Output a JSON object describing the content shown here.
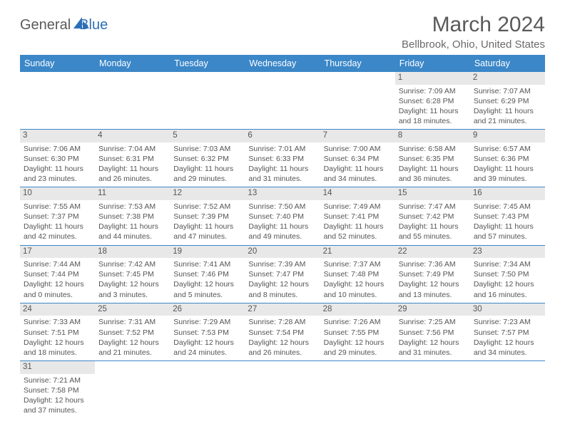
{
  "brand": {
    "a": "General",
    "b": "Blue"
  },
  "title": "March 2024",
  "location": "Bellbrook, Ohio, United States",
  "headerBg": "#3b87c8",
  "headerFg": "#ffffff",
  "dayBg": "#e8e8e8",
  "borderColor": "#3b87c8",
  "days": [
    "Sunday",
    "Monday",
    "Tuesday",
    "Wednesday",
    "Thursday",
    "Friday",
    "Saturday"
  ],
  "weeks": [
    [
      {
        "n": "",
        "empty": true
      },
      {
        "n": "",
        "empty": true
      },
      {
        "n": "",
        "empty": true
      },
      {
        "n": "",
        "empty": true
      },
      {
        "n": "",
        "empty": true
      },
      {
        "n": "1",
        "sr": "Sunrise: 7:09 AM",
        "ss": "Sunset: 6:28 PM",
        "dl": "Daylight: 11 hours and 18 minutes."
      },
      {
        "n": "2",
        "sr": "Sunrise: 7:07 AM",
        "ss": "Sunset: 6:29 PM",
        "dl": "Daylight: 11 hours and 21 minutes."
      }
    ],
    [
      {
        "n": "3",
        "sr": "Sunrise: 7:06 AM",
        "ss": "Sunset: 6:30 PM",
        "dl": "Daylight: 11 hours and 23 minutes."
      },
      {
        "n": "4",
        "sr": "Sunrise: 7:04 AM",
        "ss": "Sunset: 6:31 PM",
        "dl": "Daylight: 11 hours and 26 minutes."
      },
      {
        "n": "5",
        "sr": "Sunrise: 7:03 AM",
        "ss": "Sunset: 6:32 PM",
        "dl": "Daylight: 11 hours and 29 minutes."
      },
      {
        "n": "6",
        "sr": "Sunrise: 7:01 AM",
        "ss": "Sunset: 6:33 PM",
        "dl": "Daylight: 11 hours and 31 minutes."
      },
      {
        "n": "7",
        "sr": "Sunrise: 7:00 AM",
        "ss": "Sunset: 6:34 PM",
        "dl": "Daylight: 11 hours and 34 minutes."
      },
      {
        "n": "8",
        "sr": "Sunrise: 6:58 AM",
        "ss": "Sunset: 6:35 PM",
        "dl": "Daylight: 11 hours and 36 minutes."
      },
      {
        "n": "9",
        "sr": "Sunrise: 6:57 AM",
        "ss": "Sunset: 6:36 PM",
        "dl": "Daylight: 11 hours and 39 minutes."
      }
    ],
    [
      {
        "n": "10",
        "sr": "Sunrise: 7:55 AM",
        "ss": "Sunset: 7:37 PM",
        "dl": "Daylight: 11 hours and 42 minutes."
      },
      {
        "n": "11",
        "sr": "Sunrise: 7:53 AM",
        "ss": "Sunset: 7:38 PM",
        "dl": "Daylight: 11 hours and 44 minutes."
      },
      {
        "n": "12",
        "sr": "Sunrise: 7:52 AM",
        "ss": "Sunset: 7:39 PM",
        "dl": "Daylight: 11 hours and 47 minutes."
      },
      {
        "n": "13",
        "sr": "Sunrise: 7:50 AM",
        "ss": "Sunset: 7:40 PM",
        "dl": "Daylight: 11 hours and 49 minutes."
      },
      {
        "n": "14",
        "sr": "Sunrise: 7:49 AM",
        "ss": "Sunset: 7:41 PM",
        "dl": "Daylight: 11 hours and 52 minutes."
      },
      {
        "n": "15",
        "sr": "Sunrise: 7:47 AM",
        "ss": "Sunset: 7:42 PM",
        "dl": "Daylight: 11 hours and 55 minutes."
      },
      {
        "n": "16",
        "sr": "Sunrise: 7:45 AM",
        "ss": "Sunset: 7:43 PM",
        "dl": "Daylight: 11 hours and 57 minutes."
      }
    ],
    [
      {
        "n": "17",
        "sr": "Sunrise: 7:44 AM",
        "ss": "Sunset: 7:44 PM",
        "dl": "Daylight: 12 hours and 0 minutes."
      },
      {
        "n": "18",
        "sr": "Sunrise: 7:42 AM",
        "ss": "Sunset: 7:45 PM",
        "dl": "Daylight: 12 hours and 3 minutes."
      },
      {
        "n": "19",
        "sr": "Sunrise: 7:41 AM",
        "ss": "Sunset: 7:46 PM",
        "dl": "Daylight: 12 hours and 5 minutes."
      },
      {
        "n": "20",
        "sr": "Sunrise: 7:39 AM",
        "ss": "Sunset: 7:47 PM",
        "dl": "Daylight: 12 hours and 8 minutes."
      },
      {
        "n": "21",
        "sr": "Sunrise: 7:37 AM",
        "ss": "Sunset: 7:48 PM",
        "dl": "Daylight: 12 hours and 10 minutes."
      },
      {
        "n": "22",
        "sr": "Sunrise: 7:36 AM",
        "ss": "Sunset: 7:49 PM",
        "dl": "Daylight: 12 hours and 13 minutes."
      },
      {
        "n": "23",
        "sr": "Sunrise: 7:34 AM",
        "ss": "Sunset: 7:50 PM",
        "dl": "Daylight: 12 hours and 16 minutes."
      }
    ],
    [
      {
        "n": "24",
        "sr": "Sunrise: 7:33 AM",
        "ss": "Sunset: 7:51 PM",
        "dl": "Daylight: 12 hours and 18 minutes."
      },
      {
        "n": "25",
        "sr": "Sunrise: 7:31 AM",
        "ss": "Sunset: 7:52 PM",
        "dl": "Daylight: 12 hours and 21 minutes."
      },
      {
        "n": "26",
        "sr": "Sunrise: 7:29 AM",
        "ss": "Sunset: 7:53 PM",
        "dl": "Daylight: 12 hours and 24 minutes."
      },
      {
        "n": "27",
        "sr": "Sunrise: 7:28 AM",
        "ss": "Sunset: 7:54 PM",
        "dl": "Daylight: 12 hours and 26 minutes."
      },
      {
        "n": "28",
        "sr": "Sunrise: 7:26 AM",
        "ss": "Sunset: 7:55 PM",
        "dl": "Daylight: 12 hours and 29 minutes."
      },
      {
        "n": "29",
        "sr": "Sunrise: 7:25 AM",
        "ss": "Sunset: 7:56 PM",
        "dl": "Daylight: 12 hours and 31 minutes."
      },
      {
        "n": "30",
        "sr": "Sunrise: 7:23 AM",
        "ss": "Sunset: 7:57 PM",
        "dl": "Daylight: 12 hours and 34 minutes."
      }
    ],
    [
      {
        "n": "31",
        "sr": "Sunrise: 7:21 AM",
        "ss": "Sunset: 7:58 PM",
        "dl": "Daylight: 12 hours and 37 minutes."
      },
      {
        "n": "",
        "empty": true
      },
      {
        "n": "",
        "empty": true
      },
      {
        "n": "",
        "empty": true
      },
      {
        "n": "",
        "empty": true
      },
      {
        "n": "",
        "empty": true
      },
      {
        "n": "",
        "empty": true
      }
    ]
  ]
}
